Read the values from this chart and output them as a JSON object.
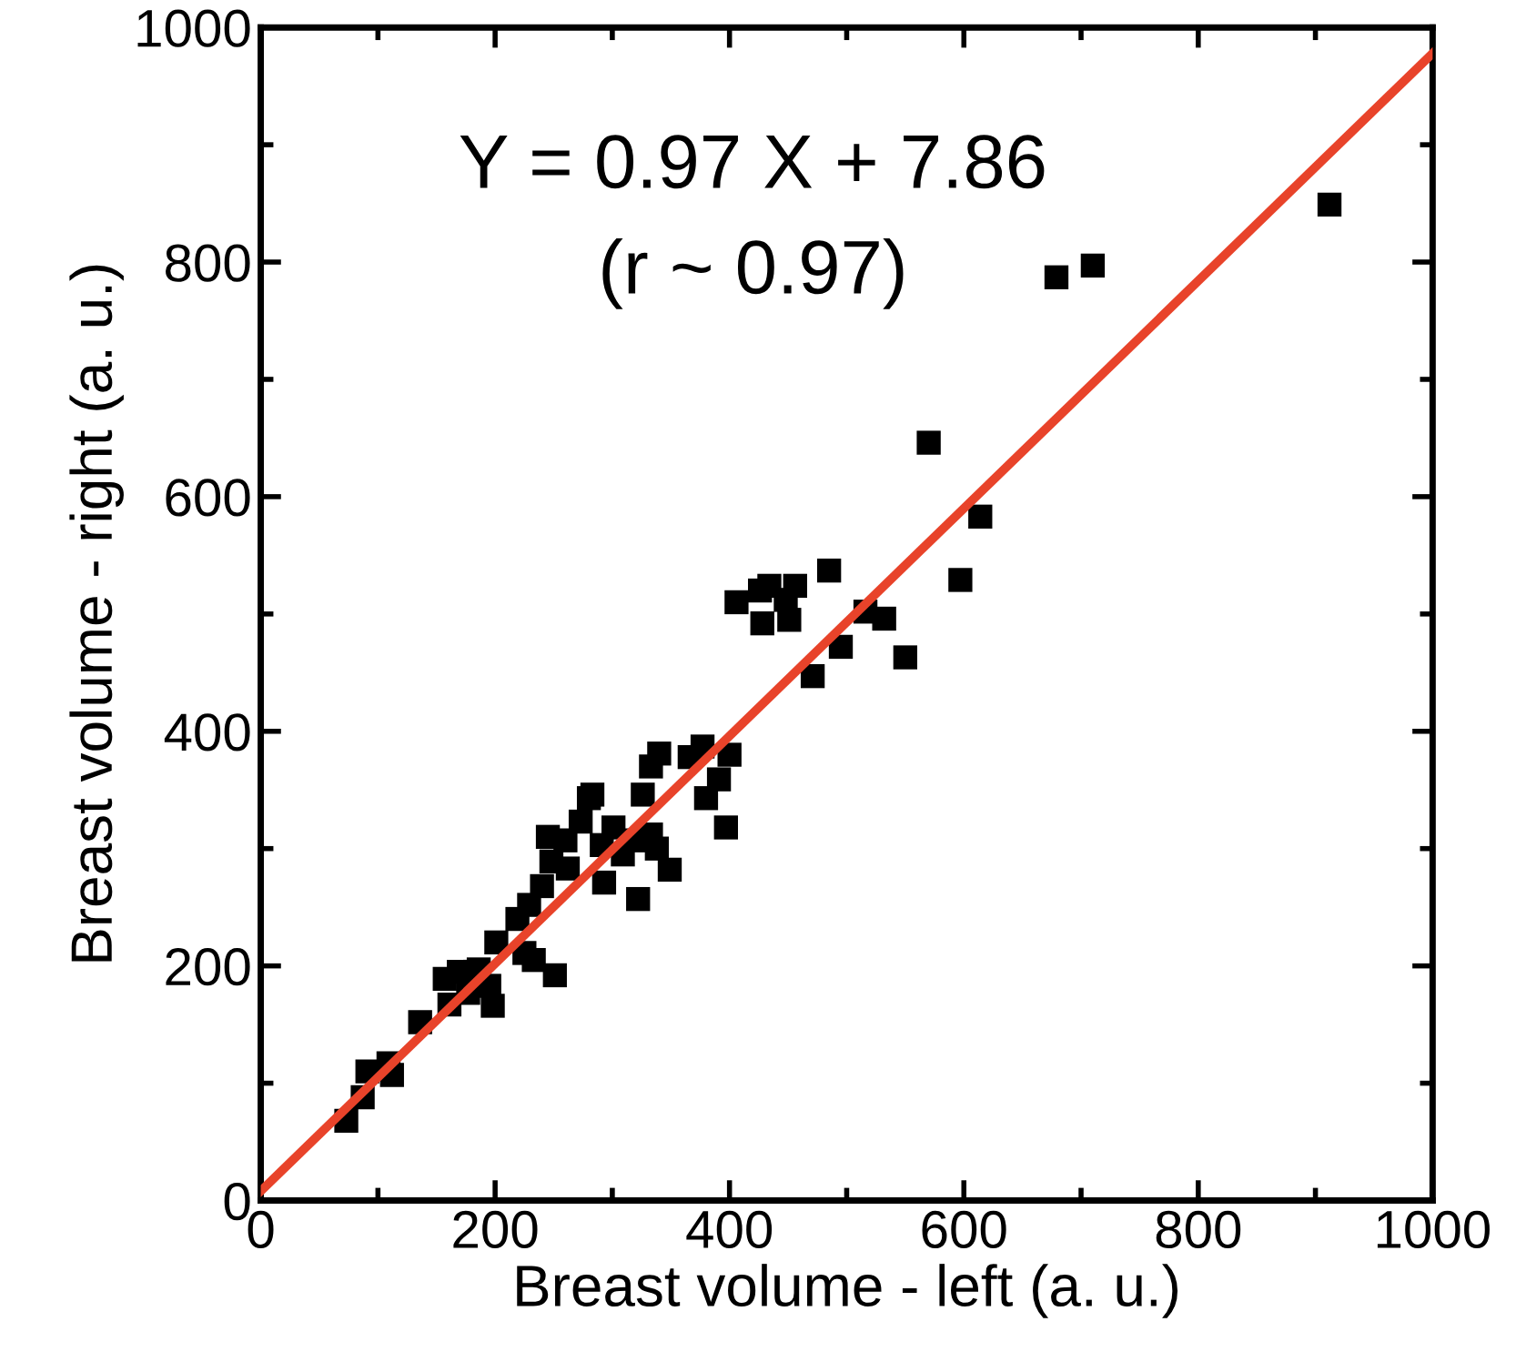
{
  "chart_data": {
    "type": "scatter",
    "xlabel": "Breast volume - left (a. u.)",
    "ylabel": "Breast volume - right (a. u.)",
    "xlim": [
      0,
      1000
    ],
    "ylim": [
      0,
      1000
    ],
    "xticks": [
      0,
      200,
      400,
      600,
      800,
      1000
    ],
    "yticks": [
      0,
      200,
      400,
      600,
      800,
      1000
    ],
    "grid": false,
    "series": [
      {
        "marker": "square",
        "color": "#000000",
        "x": [
          73,
          87,
          91,
          109,
          112,
          136,
          157,
          161,
          169,
          177,
          186,
          195,
          198,
          201,
          219,
          225,
          233,
          229,
          240,
          248,
          251,
          245,
          260,
          262,
          273,
          280,
          283,
          291,
          293,
          301,
          309,
          318,
          322,
          326,
          333,
          338,
          333,
          340,
          349,
          366,
          377,
          380,
          391,
          397,
          400,
          406,
          426,
          434,
          448,
          451,
          456,
          428,
          471,
          485,
          495,
          516,
          532,
          550,
          570,
          597,
          614,
          679,
          710,
          912
        ],
        "values": [
          68,
          88,
          110,
          117,
          107,
          152,
          189,
          167,
          195,
          177,
          197,
          183,
          166,
          220,
          240,
          211,
          205,
          252,
          268,
          289,
          192,
          310,
          307,
          283,
          323,
          343,
          346,
          303,
          271,
          318,
          295,
          307,
          257,
          346,
          312,
          300,
          370,
          381,
          282,
          378,
          387,
          343,
          359,
          318,
          380,
          510,
          520,
          524,
          512,
          495,
          524,
          492,
          447,
          537,
          472,
          502,
          496,
          463,
          646,
          529,
          583,
          787,
          797,
          849
        ]
      },
      {
        "type": "line",
        "color": "#e8432a",
        "x": [
          0,
          1000
        ],
        "values": [
          8,
          978
        ]
      }
    ],
    "annotations": [
      "Y = 0.97 X + 7.86",
      "(r ~ 0.97)"
    ]
  }
}
